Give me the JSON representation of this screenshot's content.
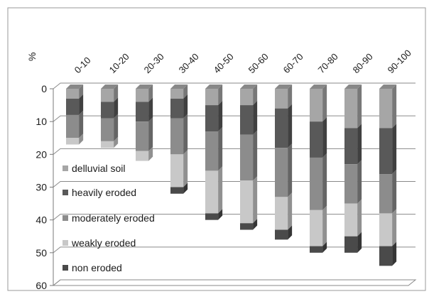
{
  "chart_data": {
    "type": "bar",
    "stacked": true,
    "orientation": "vertical-inverted",
    "unit_label": "%",
    "categories": [
      "0-10",
      "10-20",
      "20-30",
      "30-40",
      "40-50",
      "50-60",
      "60-70",
      "70-80",
      "80-90",
      "90-100"
    ],
    "series": [
      {
        "name": "delluvial soil",
        "color": "#a6a6a6",
        "values": [
          3,
          4,
          4,
          3,
          5,
          5,
          6,
          10,
          12,
          12
        ]
      },
      {
        "name": "heavily eroded",
        "color": "#595959",
        "values": [
          5,
          5,
          6,
          6,
          8,
          9,
          12,
          11,
          11,
          14
        ]
      },
      {
        "name": "moderately eroded",
        "color": "#8c8c8c",
        "values": [
          7,
          7,
          9,
          11,
          12,
          14,
          15,
          16,
          12,
          12
        ]
      },
      {
        "name": "weakly eroded",
        "color": "#c8c8c8",
        "values": [
          2,
          2,
          3,
          10,
          13,
          13,
          10,
          11,
          10,
          10
        ]
      },
      {
        "name": "non eroded",
        "color": "#4a4a4a",
        "values": [
          0,
          0,
          0,
          2,
          2,
          2,
          3,
          2,
          5,
          6
        ]
      }
    ],
    "ylim": [
      0,
      60
    ],
    "yticks": [
      0,
      10,
      20,
      30,
      40,
      50,
      60
    ],
    "grid": true,
    "legend_position": "left-inside"
  }
}
